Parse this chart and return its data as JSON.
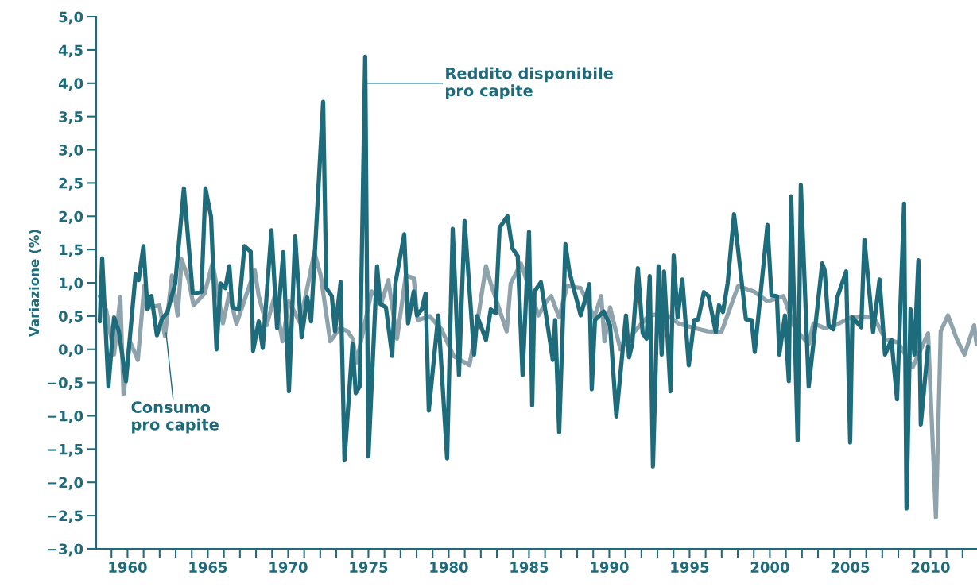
{
  "chart_data": {
    "type": "line",
    "ylabel": "Variazione (%)",
    "xlim": [
      1958.05,
      2012.9
    ],
    "ylim": [
      -3.0,
      5.0
    ],
    "yticks": [
      {
        "value": -3.0,
        "label": "−3,0"
      },
      {
        "value": -2.5,
        "label": "−2,5"
      },
      {
        "value": -2.0,
        "label": "−2,0"
      },
      {
        "value": -1.5,
        "label": "−1,5"
      },
      {
        "value": -1.0,
        "label": "−1,0"
      },
      {
        "value": -0.5,
        "label": "−0,5"
      },
      {
        "value": 0.0,
        "label": "0,0"
      },
      {
        "value": 0.5,
        "label": "0,5"
      },
      {
        "value": 1.0,
        "label": "1,0"
      },
      {
        "value": 1.5,
        "label": "1,5"
      },
      {
        "value": 2.0,
        "label": "2,0"
      },
      {
        "value": 2.5,
        "label": "2,5"
      },
      {
        "value": 3.0,
        "label": "3,0"
      },
      {
        "value": 3.5,
        "label": "3,5"
      },
      {
        "value": 4.0,
        "label": "4,0"
      },
      {
        "value": 4.5,
        "label": "4,5"
      },
      {
        "value": 5.0,
        "label": "5,0"
      }
    ],
    "xticks": [
      {
        "value": 1959,
        "label": null
      },
      1960,
      {
        "value": 1961,
        "label": null
      },
      {
        "value": 1962,
        "label": null
      },
      {
        "value": 1963,
        "label": null
      },
      {
        "value": 1964,
        "label": null
      },
      1965,
      {
        "value": 1966,
        "label": null
      },
      {
        "value": 1967,
        "label": null
      },
      {
        "value": 1968,
        "label": null
      },
      {
        "value": 1969,
        "label": null
      },
      1970,
      {
        "value": 1971,
        "label": null
      },
      {
        "value": 1972,
        "label": null
      },
      {
        "value": 1973,
        "label": null
      },
      {
        "value": 1974,
        "label": null
      },
      1975,
      {
        "value": 1976,
        "label": null
      },
      {
        "value": 1977,
        "label": null
      },
      {
        "value": 1978,
        "label": null
      },
      {
        "value": 1979,
        "label": null
      },
      1980,
      {
        "value": 1981,
        "label": null
      },
      {
        "value": 1982,
        "label": null
      },
      {
        "value": 1983,
        "label": null
      },
      {
        "value": 1984,
        "label": null
      },
      1985,
      {
        "value": 1986,
        "label": null
      },
      {
        "value": 1987,
        "label": null
      },
      {
        "value": 1988,
        "label": null
      },
      {
        "value": 1989,
        "label": null
      },
      1990,
      {
        "value": 1991,
        "label": null
      },
      {
        "value": 1992,
        "label": null
      },
      {
        "value": 1993,
        "label": null
      },
      {
        "value": 1994,
        "label": null
      },
      1995,
      {
        "value": 1996,
        "label": null
      },
      {
        "value": 1997,
        "label": null
      },
      {
        "value": 1998,
        "label": null
      },
      {
        "value": 1999,
        "label": null
      },
      2000,
      {
        "value": 2001,
        "label": null
      },
      {
        "value": 2002,
        "label": null
      },
      {
        "value": 2003,
        "label": null
      },
      {
        "value": 2004,
        "label": null
      },
      2005,
      {
        "value": 2006,
        "label": null
      },
      {
        "value": 2007,
        "label": null
      },
      {
        "value": 2008,
        "label": null
      },
      {
        "value": 2009,
        "label": null
      },
      2010,
      {
        "value": 2011,
        "label": null
      },
      {
        "value": 2012,
        "label": null
      }
    ],
    "grid": false,
    "legend": false,
    "marker": "none",
    "line_style": "solid",
    "series": [
      {
        "color": "#8fa3ad",
        "x": [
          1958.27,
          1958.66,
          1959.16,
          1959.55,
          1959.75,
          1960.15,
          1960.64,
          1961.04,
          1961.39,
          1961.98,
          1962.33,
          1962.77,
          1963.12,
          1963.37,
          1963.81,
          1964.11,
          1964.8,
          1965.3,
          1965.94,
          1966.34,
          1966.78,
          1967.92,
          1968.17,
          1968.66,
          1969.16,
          1969.65,
          1970.05,
          1970.74,
          1971.29,
          1971.63,
          1972.03,
          1972.62,
          1973.22,
          1973.71,
          1974.01,
          1974.26,
          1975.2,
          1975.84,
          1976.24,
          1976.78,
          1977.33,
          1977.82,
          1978.07,
          1978.81,
          1979.55,
          1980.3,
          1981.29,
          1981.78,
          1982.32,
          1982.62,
          1983.61,
          1983.86,
          1984.5,
          1985.59,
          1986.09,
          1986.38,
          1986.88,
          1987.37,
          1988.22,
          1989.06,
          1989.5,
          1989.7,
          1990.05,
          1990.69,
          1991.58,
          1992.42,
          1993.41,
          1994.3,
          1995.29,
          1996.13,
          1996.98,
          1998.02,
          1999.01,
          1999.85,
          2000.84,
          2001.58,
          2002.42,
          2002.72,
          2003.41,
          2004.06,
          2005.05,
          2006.48,
          2007.17,
          2008.0,
          2008.89,
          2009.85,
          2010.34,
          2010.64,
          2011.09,
          2011.63,
          2012.12,
          2012.72,
          2012.87
        ],
        "values": [
          0.8,
          0.6,
          -0.08,
          0.78,
          -0.68,
          0.12,
          -0.16,
          0.95,
          0.63,
          0.66,
          0.2,
          1.11,
          0.51,
          1.35,
          1.04,
          0.66,
          0.84,
          1.3,
          0.39,
          0.84,
          0.38,
          1.19,
          0.8,
          0.36,
          0.8,
          0.12,
          0.72,
          0.4,
          1.04,
          1.46,
          1.11,
          0.12,
          0.32,
          0.27,
          0.16,
          -0.2,
          0.87,
          0.72,
          1.04,
          0.16,
          1.11,
          1.07,
          0.44,
          0.5,
          0.3,
          -0.1,
          -0.24,
          0.4,
          1.25,
          0.99,
          0.27,
          0.99,
          1.29,
          0.51,
          0.72,
          0.8,
          0.48,
          0.95,
          0.92,
          0.48,
          0.8,
          0.12,
          0.63,
          0.0,
          0.27,
          0.5,
          0.55,
          0.39,
          0.32,
          0.27,
          0.26,
          0.95,
          0.87,
          0.72,
          0.8,
          0.3,
          0.08,
          0.39,
          0.32,
          0.36,
          0.48,
          0.48,
          0.16,
          0.1,
          -0.27,
          0.24,
          -2.53,
          0.27,
          0.51,
          0.16,
          -0.08,
          0.36,
          0.08
        ]
      },
      {
        "color": "#1e6b7b",
        "x": [
          1958.27,
          1958.42,
          1958.81,
          1959.16,
          1959.46,
          1959.9,
          1960.5,
          1960.69,
          1960.99,
          1961.24,
          1961.49,
          1961.83,
          1962.13,
          1962.48,
          1962.97,
          1963.51,
          1964.06,
          1964.6,
          1964.85,
          1965.2,
          1965.54,
          1965.79,
          1966.09,
          1966.34,
          1966.53,
          1966.93,
          1967.28,
          1967.67,
          1967.82,
          1968.17,
          1968.42,
          1968.96,
          1969.31,
          1969.7,
          1970.05,
          1970.44,
          1970.84,
          1971.19,
          1971.43,
          1972.18,
          1972.38,
          1972.72,
          1972.92,
          1973.27,
          1973.51,
          1974.01,
          1974.21,
          1974.45,
          1974.8,
          1975.0,
          1975.54,
          1975.74,
          1976.09,
          1976.48,
          1976.68,
          1977.23,
          1977.47,
          1977.82,
          1978.02,
          1978.32,
          1978.56,
          1978.76,
          1979.35,
          1979.9,
          1980.25,
          1980.64,
          1980.99,
          1981.58,
          1981.78,
          1982.32,
          1982.62,
          1982.92,
          1983.17,
          1983.66,
          1983.96,
          1984.3,
          1984.6,
          1985.0,
          1985.2,
          1985.34,
          1985.74,
          1986.14,
          1986.48,
          1986.63,
          1986.88,
          1987.27,
          1987.52,
          1988.22,
          1988.76,
          1988.91,
          1989.11,
          1989.65,
          1990.05,
          1990.44,
          1991.04,
          1991.23,
          1991.43,
          1991.78,
          1992.08,
          1992.32,
          1992.52,
          1992.72,
          1993.07,
          1993.26,
          1993.41,
          1993.81,
          1994.01,
          1994.25,
          1994.55,
          1994.95,
          1995.29,
          1995.54,
          1995.89,
          1996.18,
          1996.63,
          1996.83,
          1997.08,
          1997.37,
          1997.77,
          1998.51,
          1998.86,
          1999.06,
          1999.85,
          2000.1,
          2000.44,
          2000.59,
          2000.94,
          2001.18,
          2001.33,
          2001.73,
          2001.93,
          2002.42,
          2003.26,
          2003.41,
          2003.66,
          2003.96,
          2004.2,
          2004.75,
          2005.0,
          2005.14,
          2005.69,
          2005.89,
          2006.43,
          2006.83,
          2007.17,
          2007.57,
          2007.92,
          2008.36,
          2008.51,
          2008.76,
          2009.0,
          2009.25,
          2009.4,
          2009.85
        ],
        "values": [
          0.42,
          1.37,
          -0.56,
          0.48,
          0.27,
          -0.48,
          1.13,
          1.04,
          1.55,
          0.6,
          0.8,
          0.21,
          0.45,
          0.56,
          0.99,
          2.42,
          0.84,
          0.86,
          2.42,
          1.99,
          0.0,
          0.99,
          0.92,
          1.25,
          0.63,
          0.6,
          1.55,
          1.47,
          -0.02,
          0.42,
          0.02,
          1.79,
          0.32,
          1.46,
          -0.63,
          1.7,
          0.18,
          0.78,
          0.42,
          3.72,
          0.92,
          0.8,
          0.27,
          1.01,
          -1.67,
          0.08,
          -0.66,
          -0.56,
          4.4,
          -1.61,
          1.25,
          0.68,
          0.63,
          -0.1,
          0.99,
          1.73,
          0.39,
          0.87,
          0.51,
          0.6,
          0.84,
          -0.92,
          0.51,
          -1.64,
          1.81,
          -0.39,
          1.93,
          -0.08,
          0.5,
          0.14,
          0.6,
          0.54,
          1.83,
          2.0,
          1.52,
          1.4,
          -0.39,
          1.77,
          -0.84,
          0.87,
          1.01,
          0.39,
          -0.16,
          0.44,
          -1.25,
          1.58,
          1.16,
          0.51,
          0.98,
          -0.6,
          0.44,
          0.57,
          0.36,
          -1.01,
          0.51,
          -0.12,
          0.08,
          1.22,
          0.24,
          0.16,
          1.1,
          -1.76,
          1.25,
          -0.08,
          1.17,
          -0.63,
          1.41,
          0.48,
          1.05,
          -0.24,
          0.44,
          0.45,
          0.86,
          0.8,
          0.26,
          0.66,
          0.56,
          0.99,
          2.03,
          0.45,
          0.44,
          -0.04,
          1.87,
          0.81,
          0.8,
          -0.08,
          0.51,
          -0.48,
          2.3,
          -1.37,
          2.47,
          -0.56,
          1.29,
          1.19,
          0.36,
          0.3,
          0.78,
          1.17,
          -1.4,
          0.48,
          0.33,
          1.65,
          0.26,
          1.05,
          -0.08,
          0.14,
          -0.75,
          2.19,
          -2.39,
          0.6,
          -0.08,
          1.34,
          -1.13,
          0.04
        ]
      }
    ],
    "annotations": [
      {
        "text": "Reddito disponibile\npro capite",
        "x": 1974.8,
        "y": 4.0
      },
      {
        "text": "Consumo\npro capite",
        "x": 1962.4,
        "y": 0.25
      }
    ]
  }
}
